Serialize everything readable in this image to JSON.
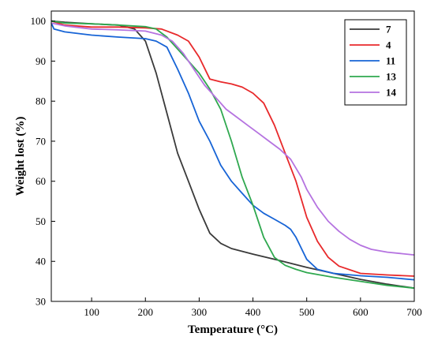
{
  "chart_data": {
    "type": "line",
    "title": "",
    "xlabel": "Temperature (°C)",
    "ylabel": "Weight lost (%)",
    "xlim": [
      25,
      700
    ],
    "ylim": [
      30,
      102.5
    ],
    "xticks": [
      100,
      200,
      300,
      400,
      500,
      600,
      700
    ],
    "yticks": [
      30,
      40,
      50,
      60,
      70,
      80,
      90,
      100
    ],
    "grid": false,
    "legend_position": "top-right",
    "series": [
      {
        "name": "7",
        "color": "#3a3a3a",
        "points": [
          [
            25,
            100
          ],
          [
            50,
            99.7
          ],
          [
            100,
            99.3
          ],
          [
            150,
            99
          ],
          [
            180,
            98
          ],
          [
            200,
            95
          ],
          [
            220,
            87
          ],
          [
            240,
            77
          ],
          [
            260,
            67
          ],
          [
            280,
            60
          ],
          [
            300,
            53
          ],
          [
            320,
            47
          ],
          [
            340,
            44.5
          ],
          [
            360,
            43.2
          ],
          [
            400,
            41.8
          ],
          [
            450,
            40.2
          ],
          [
            500,
            38.5
          ],
          [
            550,
            37
          ],
          [
            600,
            35.5
          ],
          [
            650,
            34.3
          ],
          [
            700,
            33.3
          ]
        ]
      },
      {
        "name": "4",
        "color": "#e8292b",
        "points": [
          [
            25,
            100
          ],
          [
            50,
            99
          ],
          [
            100,
            98.5
          ],
          [
            150,
            98.5
          ],
          [
            200,
            98.3
          ],
          [
            230,
            98
          ],
          [
            260,
            96.5
          ],
          [
            280,
            95
          ],
          [
            300,
            91
          ],
          [
            320,
            85.5
          ],
          [
            340,
            84.8
          ],
          [
            360,
            84.3
          ],
          [
            380,
            83.5
          ],
          [
            400,
            82
          ],
          [
            420,
            79.5
          ],
          [
            440,
            74
          ],
          [
            460,
            67
          ],
          [
            480,
            60
          ],
          [
            500,
            51
          ],
          [
            520,
            45
          ],
          [
            540,
            41
          ],
          [
            560,
            38.8
          ],
          [
            600,
            37
          ],
          [
            650,
            36.6
          ],
          [
            700,
            36.3
          ]
        ]
      },
      {
        "name": "11",
        "color": "#1764d6",
        "points": [
          [
            25,
            99.5
          ],
          [
            30,
            98
          ],
          [
            50,
            97.3
          ],
          [
            80,
            96.8
          ],
          [
            100,
            96.5
          ],
          [
            150,
            96
          ],
          [
            200,
            95.6
          ],
          [
            220,
            95
          ],
          [
            240,
            93.5
          ],
          [
            260,
            88
          ],
          [
            280,
            82
          ],
          [
            300,
            75
          ],
          [
            320,
            70
          ],
          [
            340,
            64
          ],
          [
            360,
            60
          ],
          [
            380,
            57
          ],
          [
            400,
            54
          ],
          [
            420,
            52
          ],
          [
            440,
            50.5
          ],
          [
            460,
            49
          ],
          [
            470,
            48
          ],
          [
            480,
            46
          ],
          [
            500,
            40.5
          ],
          [
            520,
            38
          ],
          [
            550,
            37
          ],
          [
            600,
            36.4
          ],
          [
            650,
            36
          ],
          [
            700,
            35.4
          ]
        ]
      },
      {
        "name": "13",
        "color": "#2fa84f",
        "points": [
          [
            25,
            100
          ],
          [
            50,
            99.5
          ],
          [
            100,
            99.3
          ],
          [
            150,
            99
          ],
          [
            200,
            98.6
          ],
          [
            220,
            98
          ],
          [
            240,
            96
          ],
          [
            260,
            93
          ],
          [
            280,
            90
          ],
          [
            300,
            87
          ],
          [
            320,
            83
          ],
          [
            340,
            78
          ],
          [
            360,
            70
          ],
          [
            380,
            61
          ],
          [
            400,
            54
          ],
          [
            420,
            46
          ],
          [
            440,
            41
          ],
          [
            460,
            39
          ],
          [
            480,
            38
          ],
          [
            500,
            37.2
          ],
          [
            550,
            36
          ],
          [
            600,
            35
          ],
          [
            650,
            34
          ],
          [
            700,
            33.3
          ]
        ]
      },
      {
        "name": "14",
        "color": "#b573e0",
        "points": [
          [
            25,
            99.5
          ],
          [
            50,
            98.8
          ],
          [
            100,
            98
          ],
          [
            150,
            97.8
          ],
          [
            200,
            97.5
          ],
          [
            230,
            96.5
          ],
          [
            250,
            95
          ],
          [
            270,
            92
          ],
          [
            290,
            88
          ],
          [
            310,
            84
          ],
          [
            330,
            81
          ],
          [
            350,
            78
          ],
          [
            370,
            76
          ],
          [
            390,
            74
          ],
          [
            410,
            72
          ],
          [
            430,
            70
          ],
          [
            450,
            68
          ],
          [
            470,
            65.5
          ],
          [
            490,
            61
          ],
          [
            500,
            58
          ],
          [
            520,
            53.5
          ],
          [
            540,
            50
          ],
          [
            560,
            47.5
          ],
          [
            580,
            45.5
          ],
          [
            600,
            44
          ],
          [
            620,
            43
          ],
          [
            650,
            42.3
          ],
          [
            700,
            41.6
          ]
        ]
      }
    ]
  }
}
